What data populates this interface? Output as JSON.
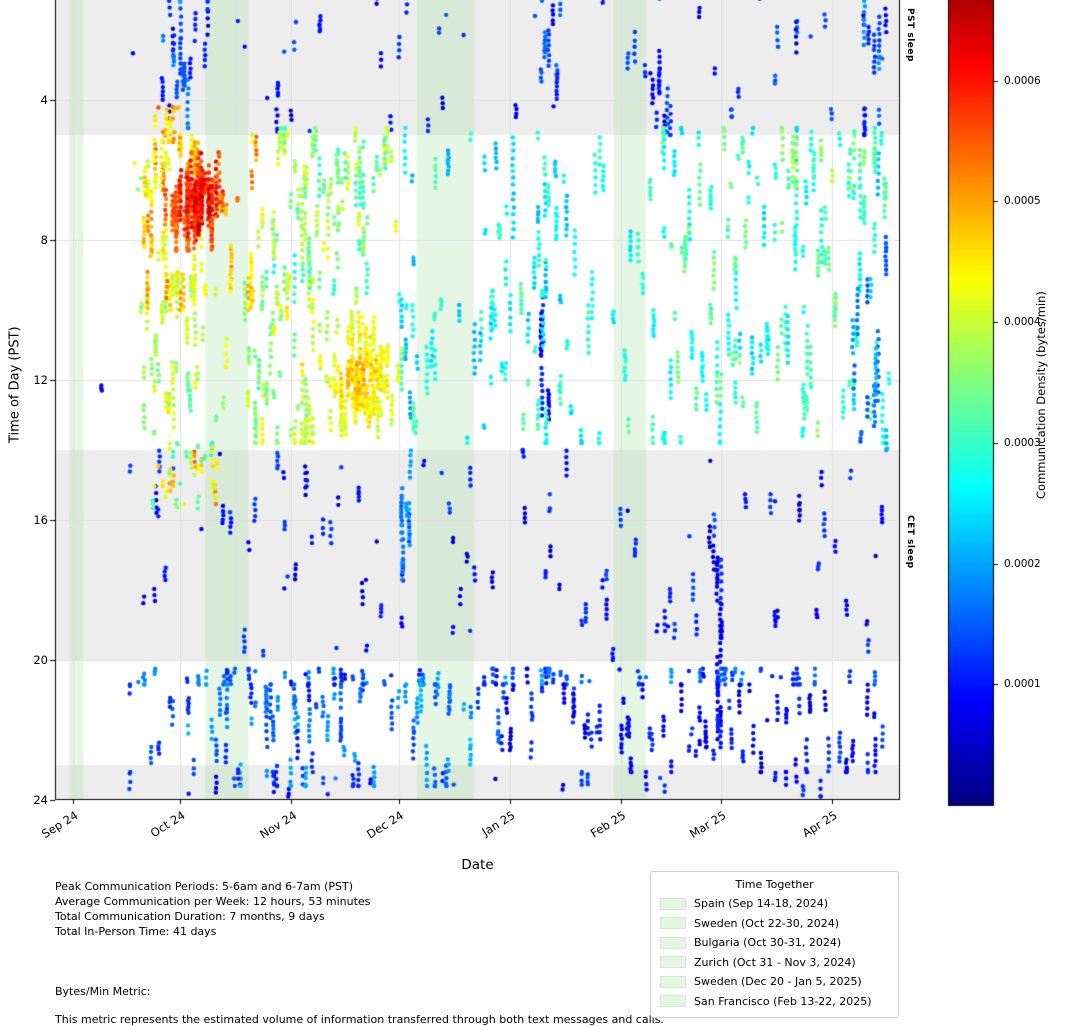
{
  "figure": {
    "xlabel": "Date",
    "ylabel": "Time of Day (PST)",
    "colorbar_label": "Communication Density (bytes/min)",
    "pst_sleep_label": "PST sleep",
    "cet_sleep_label": "CET sleep"
  },
  "annotations": {
    "lines": [
      "Peak Communication Periods: 5-6am and 6-7am (PST)",
      "Average Communication per Week: 12 hours, 53 minutes",
      "Total Communication Duration: 7 months, 9 days",
      "Total In-Person Time: 41 days"
    ],
    "metric_title": "Bytes/Min Metric:",
    "metric_description": "This metric represents the estimated volume of information transferred through both text messages and calls."
  },
  "legend": {
    "title": "Time Together",
    "swatch_color": "#e5f4e3",
    "items": [
      "Spain (Sep 14-18, 2024)",
      "Sweden (Oct 22-30, 2024)",
      "Bulgaria (Oct 30-31, 2024)",
      "Zurich (Oct 31 - Nov 3, 2024)",
      "Sweden (Dec 20 - Jan 5, 2025)",
      "San Francisco (Feb 13-22, 2025)"
    ]
  },
  "chart_data": {
    "type": "scatter",
    "title": "",
    "xlabel": "Date",
    "ylabel": "Time of Day (PST)",
    "colorbar_label": "Communication Density (bytes/min)",
    "ylim": [
      0,
      24
    ],
    "y_inverted": true,
    "grid": true,
    "grid_color": "#e0e0e0",
    "colormap": "jet",
    "vmin": 0,
    "vmax": 0.0007,
    "sleep_band_color": "rgba(0,0,0,0.07)",
    "together_band_color": "rgba(150,220,150,0.25)",
    "x_domain_days": [
      0,
      236
    ],
    "x_ticks": [
      {
        "day": 5,
        "label": "Sep 24"
      },
      {
        "day": 35,
        "label": "Oct 24"
      },
      {
        "day": 66,
        "label": "Nov 24"
      },
      {
        "day": 96,
        "label": "Dec 24"
      },
      {
        "day": 127,
        "label": "Jan 25"
      },
      {
        "day": 158,
        "label": "Feb 25"
      },
      {
        "day": 186,
        "label": "Mar 25"
      },
      {
        "day": 217,
        "label": "Apr 25"
      }
    ],
    "y_ticks": [
      {
        "value": 4,
        "label": "4"
      },
      {
        "value": 8,
        "label": "8"
      },
      {
        "value": 12,
        "label": "12"
      },
      {
        "value": 16,
        "label": "16"
      },
      {
        "value": 20,
        "label": "20"
      },
      {
        "value": 24,
        "label": "24"
      }
    ],
    "colorbar_ticks": [
      {
        "value": 0.0001,
        "label": "0.0001"
      },
      {
        "value": 0.0002,
        "label": "0.0002"
      },
      {
        "value": 0.0003,
        "label": "0.0003"
      },
      {
        "value": 0.0004,
        "label": "0.0004"
      },
      {
        "value": 0.0005,
        "label": "0.0005"
      },
      {
        "value": 0.0006,
        "label": "0.0006"
      }
    ],
    "sleep_bands": [
      {
        "label": "PST sleep",
        "hours": [
          0,
          5
        ]
      },
      {
        "label": "CET sleep",
        "hours": [
          14,
          20
        ]
      },
      {
        "label": "PST sleep",
        "hours": [
          23,
          24
        ]
      }
    ],
    "together_bands": [
      {
        "label": "Spain (Sep 14-18, 2024)",
        "days": [
          4,
          8
        ]
      },
      {
        "label": "Sweden (Oct 22-30, 2024)",
        "days": [
          42,
          50
        ]
      },
      {
        "label": "Bulgaria (Oct 30-31, 2024)",
        "days": [
          50,
          51
        ]
      },
      {
        "label": "Zurich (Oct 31 - Nov 3, 2024)",
        "days": [
          51,
          54
        ]
      },
      {
        "label": "Sweden (Dec 20 - Jan 5, 2025)",
        "days": [
          101,
          117
        ]
      },
      {
        "label": "San Francisco (Feb 13-22, 2025)",
        "days": [
          156,
          165
        ]
      }
    ],
    "clusters": [
      {
        "name": "morning-pre-dawn-scatter",
        "days": [
          18,
          233
        ],
        "hours": [
          0.2,
          4.9
        ],
        "count": 200,
        "density": [
          5e-05,
          0.00016
        ],
        "burst": [
          1,
          5
        ],
        "respect_together": false
      },
      {
        "name": "oct-pre-dawn-streaks",
        "days": [
          30,
          37
        ],
        "hours": [
          0.2,
          4.8
        ],
        "count": 90,
        "density": [
          0.0001,
          0.00022
        ],
        "burst": [
          3,
          9
        ],
        "respect_together": false
      },
      {
        "name": "jan-pre-dawn-streaks",
        "days": [
          135,
          141
        ],
        "hours": [
          0.5,
          5
        ],
        "count": 45,
        "density": [
          8e-05,
          0.00018
        ],
        "burst": [
          3,
          8
        ],
        "respect_together": false
      },
      {
        "name": "feb-pre-dawn-streaks",
        "days": [
          166,
          172
        ],
        "hours": [
          0.5,
          5
        ],
        "count": 40,
        "density": [
          8e-05,
          0.00016
        ],
        "burst": [
          3,
          8
        ],
        "respect_together": false
      },
      {
        "name": "apr-pre-dawn-streaks",
        "days": [
          224,
          231
        ],
        "hours": [
          0.5,
          5
        ],
        "count": 45,
        "density": [
          0.0001,
          0.0002
        ],
        "burst": [
          3,
          8
        ],
        "respect_together": false
      },
      {
        "name": "cet-sleep-sparse",
        "days": [
          20,
          232
        ],
        "hours": [
          14,
          20
        ],
        "count": 290,
        "density": [
          4e-05,
          0.00014
        ],
        "burst": [
          1,
          5
        ],
        "respect_together": false
      },
      {
        "name": "dec-afternoon-streaks",
        "days": [
          94,
          100
        ],
        "hours": [
          14,
          19
        ],
        "count": 50,
        "density": [
          0.00012,
          0.00022
        ],
        "burst": [
          4,
          9
        ],
        "respect_together": false
      },
      {
        "name": "mar-evening-streak",
        "days": [
          185,
          187
        ],
        "hours": [
          14,
          23.3
        ],
        "count": 60,
        "density": [
          5e-05,
          0.00012
        ],
        "burst": [
          5,
          12
        ],
        "respect_together": false
      },
      {
        "name": "jan-daytime-streak",
        "days": [
          136,
          138
        ],
        "hours": [
          8,
          13.5
        ],
        "count": 40,
        "density": [
          6e-05,
          0.00012
        ],
        "burst": [
          5,
          10
        ],
        "respect_together": false
      },
      {
        "name": "left-first-dots",
        "days": [
          12,
          14
        ],
        "hours": [
          11.7,
          12.3
        ],
        "count": 3,
        "density": [
          6e-05,
          0.0001
        ],
        "burst": [
          1,
          2
        ],
        "respect_together": false
      },
      {
        "name": "early-warm-dots",
        "days": [
          22,
          26
        ],
        "hours": [
          5.2,
          6.6
        ],
        "count": 5,
        "density": [
          0.00033,
          0.0004
        ],
        "burst": [
          1,
          2
        ],
        "respect_together": false
      },
      {
        "name": "late-night-fringe",
        "days": [
          20,
          232
        ],
        "hours": [
          23.2,
          23.9
        ],
        "count": 60,
        "density": [
          6e-05,
          0.00014
        ],
        "burst": [
          1,
          4
        ],
        "respect_together": false
      },
      {
        "name": "evening-row-2030",
        "days": [
          20,
          232
        ],
        "hours": [
          20.25,
          20.7
        ],
        "count": 200,
        "density": [
          8e-05,
          0.0002
        ],
        "burst": [
          1,
          4
        ],
        "respect_together": false
      },
      {
        "name": "evening-cloud-oct-dec",
        "days": [
          20,
          125
        ],
        "hours": [
          20.7,
          23.6
        ],
        "count": 330,
        "density": [
          0.0001,
          0.00022
        ],
        "burst": [
          2,
          7
        ],
        "respect_together": false
      },
      {
        "name": "evening-cloud-jan-apr",
        "days": [
          125,
          232
        ],
        "hours": [
          20.7,
          23.2
        ],
        "count": 270,
        "density": [
          5e-05,
          0.00014
        ],
        "burst": [
          2,
          7
        ],
        "respect_together": false
      },
      {
        "name": "winter-daytime-green-cyan",
        "days": [
          96,
          152
        ],
        "hours": [
          4.8,
          13.8
        ],
        "count": 480,
        "density": [
          0.0002,
          0.00032
        ],
        "burst": [
          2,
          8
        ],
        "respect_together": true
      },
      {
        "name": "spring-daytime-green",
        "days": [
          152,
          233
        ],
        "hours": [
          4.8,
          13.8
        ],
        "count": 640,
        "density": [
          0.00024,
          0.00036
        ],
        "burst": [
          2,
          8
        ],
        "respect_together": true
      },
      {
        "name": "apr-cyan-streaks",
        "days": [
          222,
          232
        ],
        "hours": [
          4.8,
          14
        ],
        "count": 90,
        "density": [
          0.00014,
          0.00024
        ],
        "burst": [
          4,
          10
        ],
        "respect_together": false
      },
      {
        "name": "spring-morning-green",
        "days": [
          205,
          230
        ],
        "hours": [
          4.9,
          6.5
        ],
        "count": 70,
        "density": [
          0.0003,
          0.0004
        ],
        "burst": [
          2,
          6
        ],
        "respect_together": false
      },
      {
        "name": "nov-morning-yellowgreen",
        "days": [
          56,
          96
        ],
        "hours": [
          4.8,
          9.8
        ],
        "count": 330,
        "density": [
          0.0003,
          0.00042
        ],
        "burst": [
          2,
          7
        ],
        "respect_together": true
      },
      {
        "name": "oct-midday-yellow",
        "days": [
          24,
          72
        ],
        "hours": [
          9.0,
          13.8
        ],
        "count": 430,
        "density": [
          0.00033,
          0.00044
        ],
        "burst": [
          2,
          7
        ],
        "respect_together": true
      },
      {
        "name": "novdec-midday-orange",
        "days": [
          72,
          98
        ],
        "hours": [
          10.0,
          13.8
        ],
        "count": 380,
        "density": [
          0.00038,
          0.0005
        ],
        "burst": [
          2,
          7
        ],
        "respect_together": true,
        "center_biased": true
      },
      {
        "name": "oct-afternoon-warm",
        "days": [
          27,
          45
        ],
        "hours": [
          13.8,
          15.8
        ],
        "count": 70,
        "density": [
          0.00028,
          0.00052
        ],
        "burst": [
          1,
          4
        ],
        "respect_together": false
      },
      {
        "name": "oct-dawn-warm",
        "days": [
          27,
          36
        ],
        "hours": [
          4.2,
          5.2
        ],
        "count": 30,
        "density": [
          0.00038,
          0.00055
        ],
        "burst": [
          1,
          4
        ],
        "respect_together": false
      },
      {
        "name": "oct-morning-orange",
        "days": [
          24,
          56
        ],
        "hours": [
          5.0,
          10.0
        ],
        "count": 420,
        "density": [
          0.0004,
          0.00052
        ],
        "burst": [
          2,
          8
        ],
        "respect_together": true
      },
      {
        "name": "oct-morning-red-core",
        "days": [
          29,
          52
        ],
        "hours": [
          5.5,
          8.3
        ],
        "count": 520,
        "density": [
          0.0005,
          0.00066
        ],
        "burst": [
          3,
          10
        ],
        "respect_together": true,
        "center_biased": true
      }
    ]
  }
}
